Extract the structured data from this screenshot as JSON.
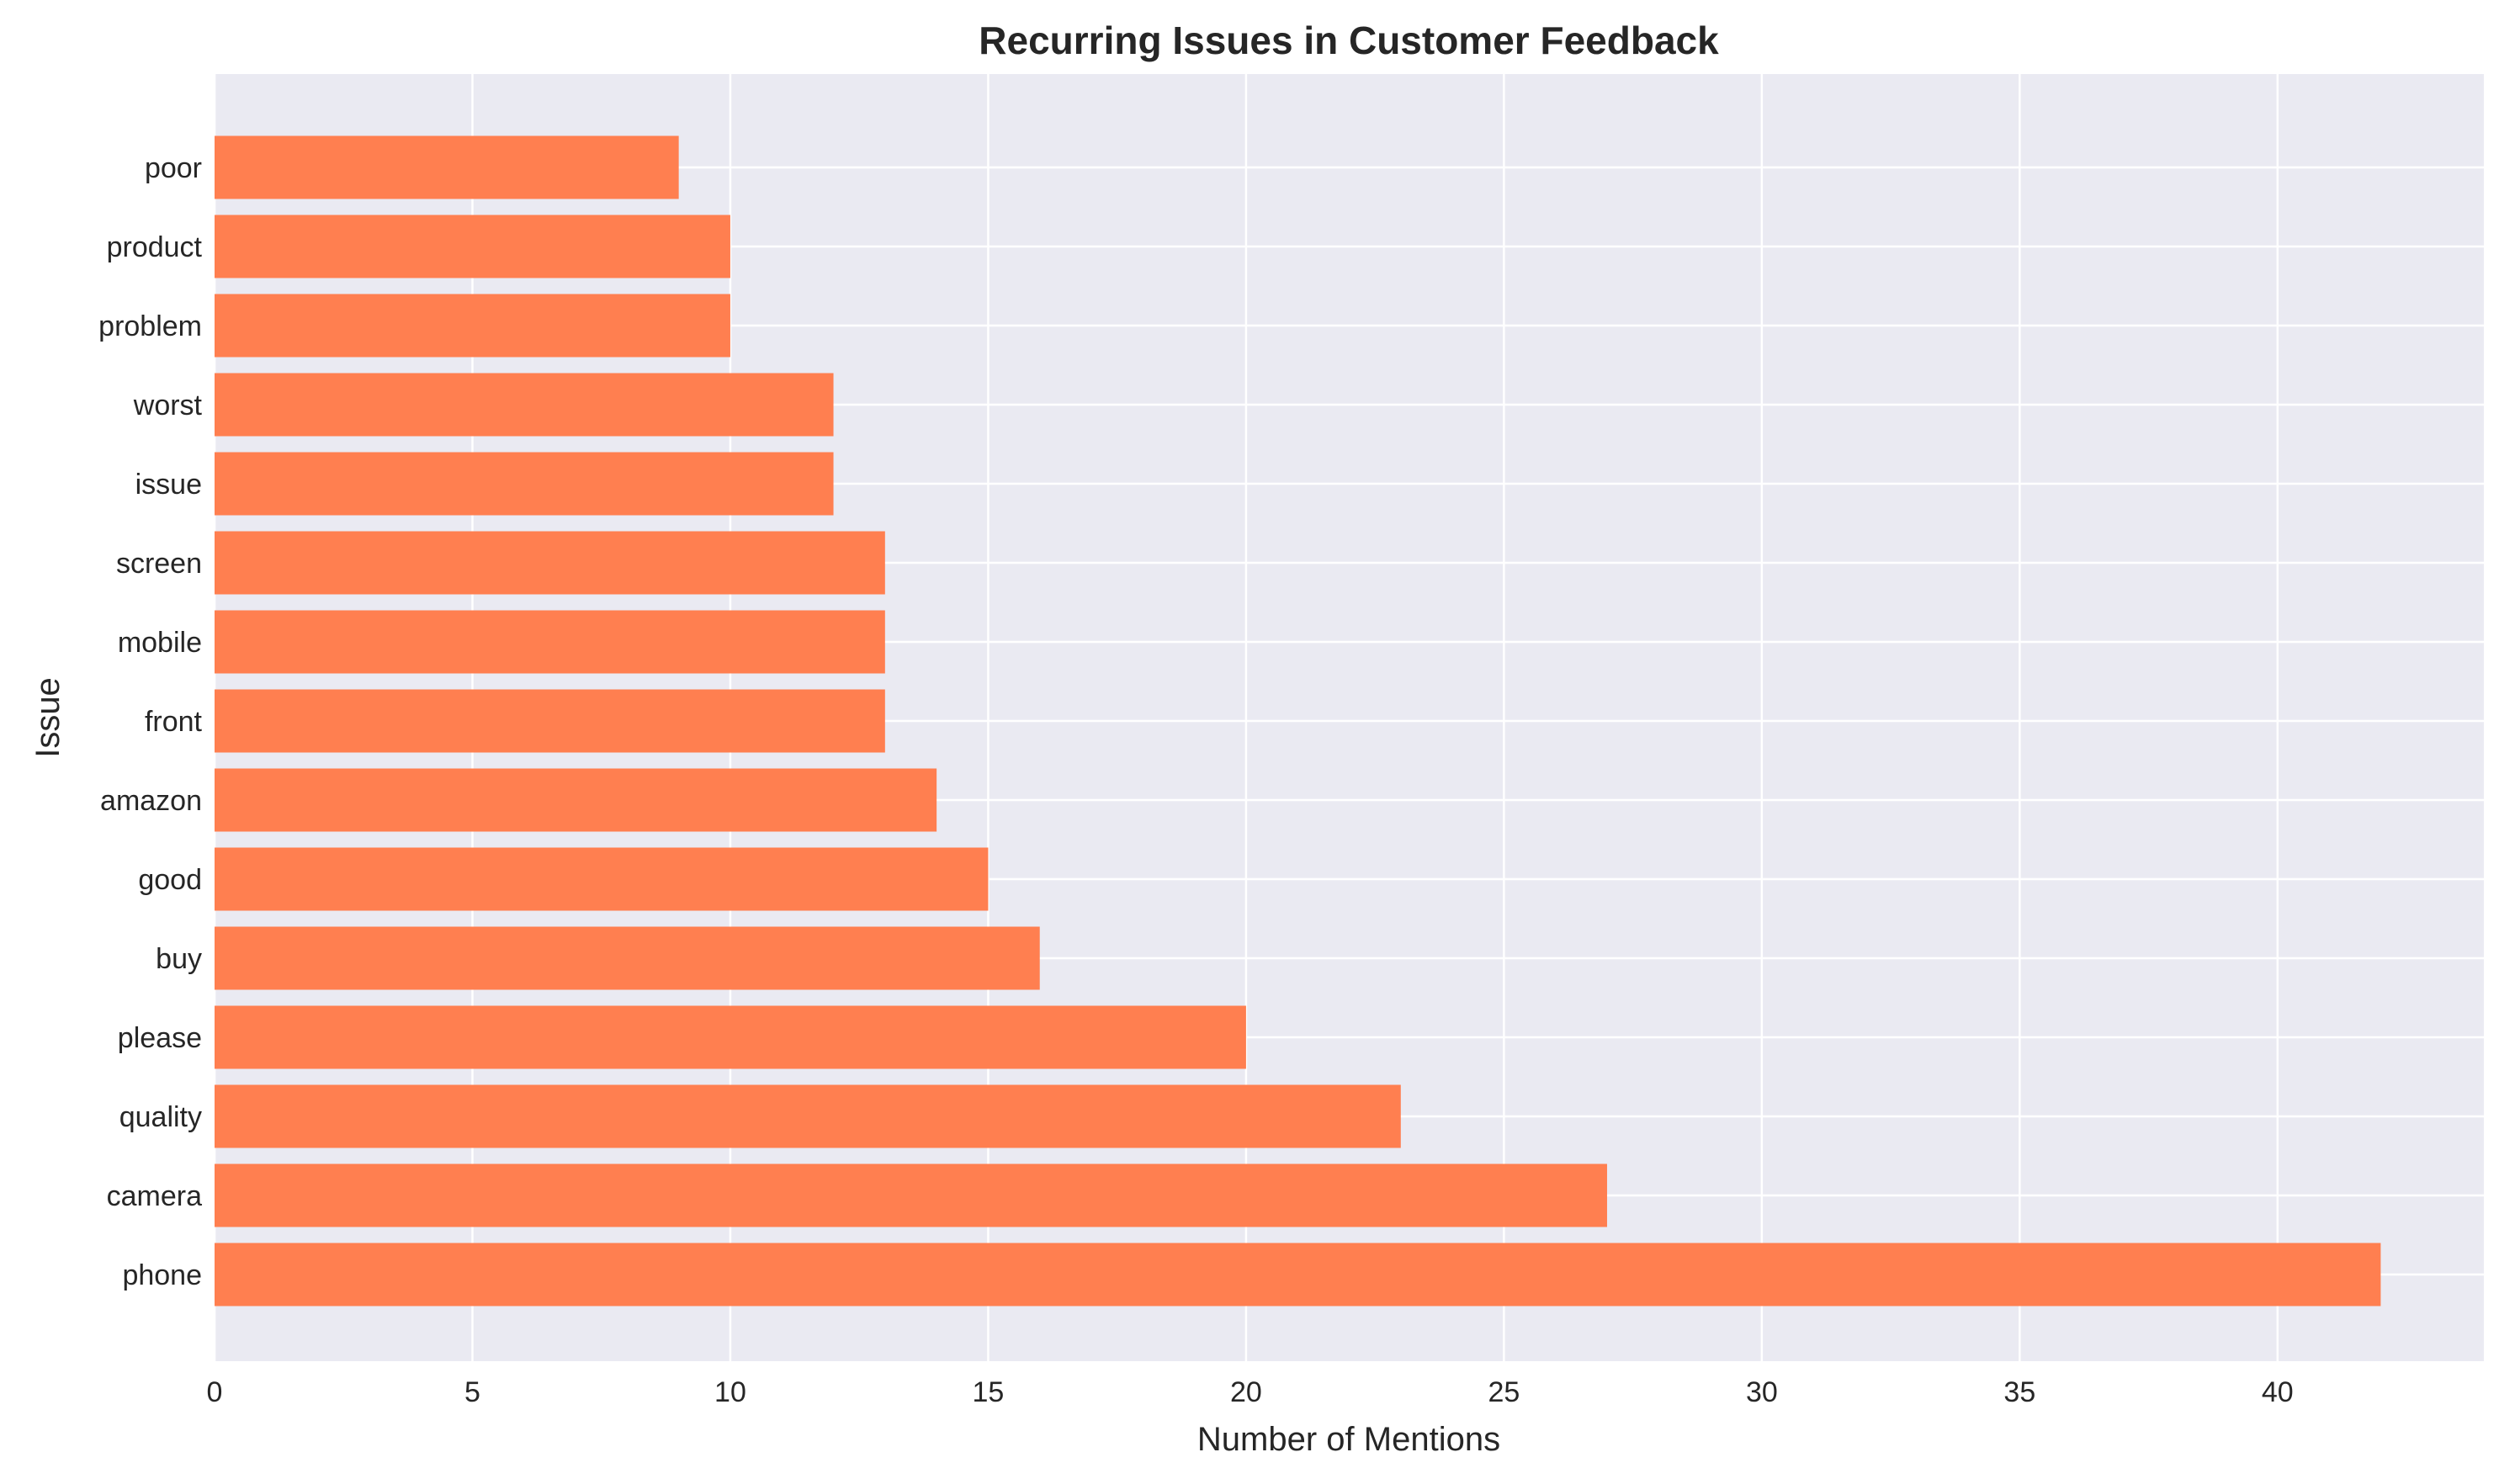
{
  "chart_data": {
    "type": "bar",
    "orientation": "horizontal",
    "title": "Recurring Issues in Customer Feedback",
    "xlabel": "Number of Mentions",
    "ylabel": "Issue",
    "categories": [
      "phone",
      "camera",
      "quality",
      "please",
      "buy",
      "good",
      "amazon",
      "front",
      "mobile",
      "screen",
      "issue",
      "worst",
      "problem",
      "product",
      "poor"
    ],
    "values": [
      42,
      27,
      23,
      20,
      16,
      15,
      14,
      13,
      13,
      13,
      12,
      12,
      10,
      10,
      9
    ],
    "xlim": [
      0,
      44
    ],
    "xticks": [
      0,
      5,
      10,
      15,
      20,
      25,
      30,
      35,
      40
    ],
    "grid": true,
    "bar_color": "#ff7f50",
    "plot_background": "#eaeaf2",
    "grid_color": "#ffffff"
  }
}
